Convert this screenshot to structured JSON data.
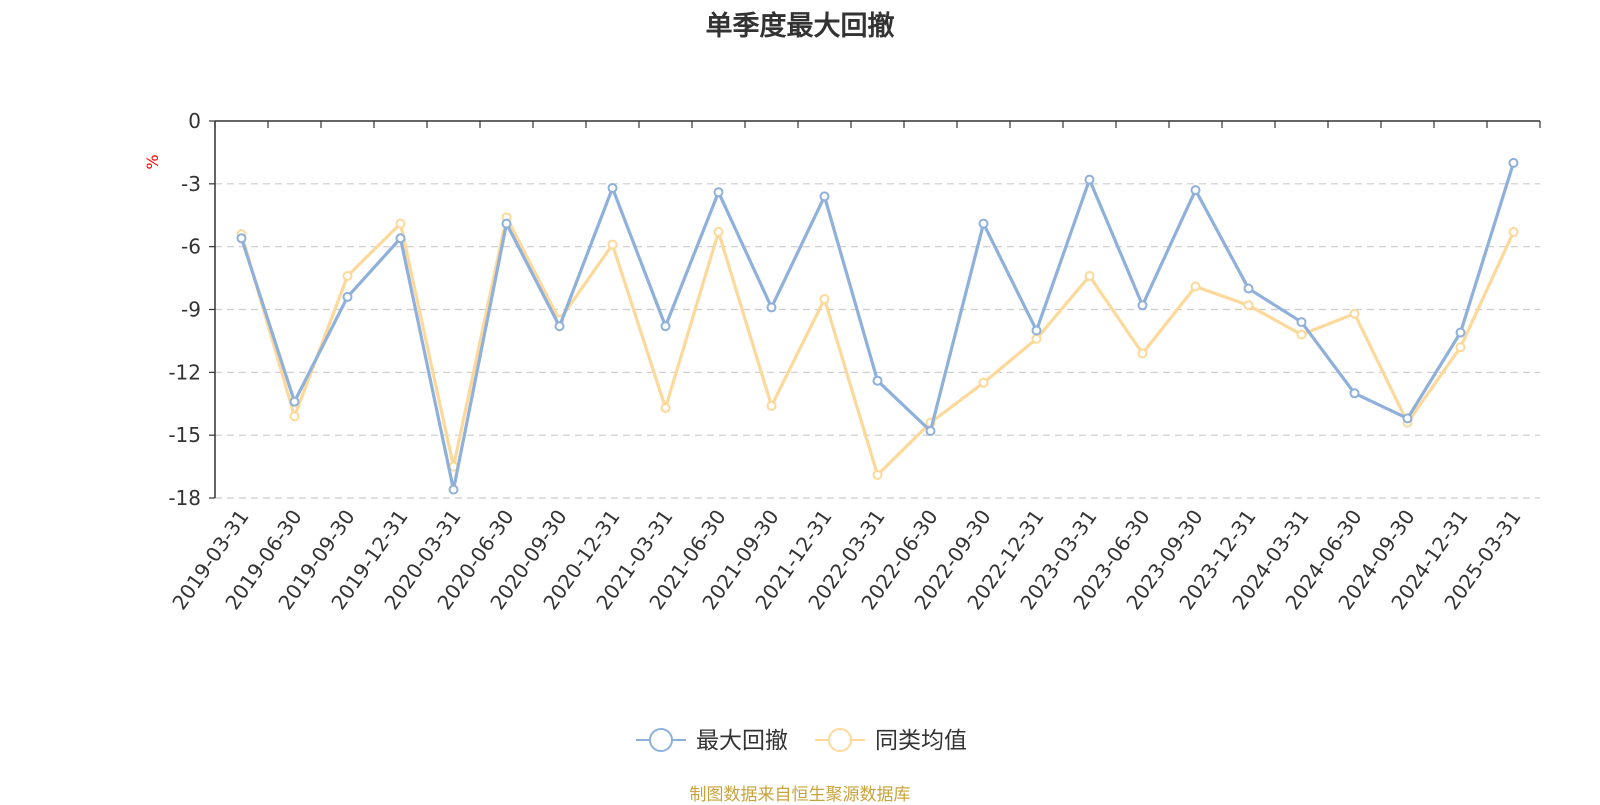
{
  "chart_data": {
    "type": "line",
    "title": "单季度最大回撤",
    "ylabel": "%",
    "ylim": [
      -18,
      0
    ],
    "yticks": [
      0,
      -3,
      -6,
      -9,
      -12,
      -15,
      -18
    ],
    "grid": true,
    "legend_position": "bottom",
    "categories": [
      "2019-03-31",
      "2019-06-30",
      "2019-09-30",
      "2019-12-31",
      "2020-03-31",
      "2020-06-30",
      "2020-09-30",
      "2020-12-31",
      "2021-03-31",
      "2021-06-30",
      "2021-09-30",
      "2021-12-31",
      "2022-03-31",
      "2022-06-30",
      "2022-09-30",
      "2022-12-31",
      "2023-03-31",
      "2023-06-30",
      "2023-09-30",
      "2023-12-31",
      "2024-03-31",
      "2024-06-30",
      "2024-09-30",
      "2024-12-31",
      "2025-03-31"
    ],
    "series": [
      {
        "name": "最大回撤",
        "color": "#8eb0db",
        "values": [
          -5.6,
          -13.4,
          -8.4,
          -5.6,
          -17.6,
          -4.9,
          -9.8,
          -3.2,
          -9.8,
          -3.4,
          -8.9,
          -3.6,
          -12.4,
          -14.8,
          -4.9,
          -10.0,
          -2.8,
          -8.8,
          -3.3,
          -8.0,
          -9.6,
          -13.0,
          -14.2,
          -10.1,
          -2.0
        ]
      },
      {
        "name": "同类均值",
        "color": "#fcd99a",
        "values": [
          -5.4,
          -14.1,
          -7.4,
          -4.9,
          -16.5,
          -4.6,
          -9.5,
          -5.9,
          -13.7,
          -5.3,
          -13.6,
          -8.5,
          -16.9,
          -14.4,
          -12.5,
          -10.4,
          -7.4,
          -11.1,
          -7.9,
          -8.8,
          -10.2,
          -9.2,
          -14.4,
          -10.8,
          -5.3
        ]
      }
    ],
    "source_note": "制图数据来自恒生聚源数据库"
  }
}
